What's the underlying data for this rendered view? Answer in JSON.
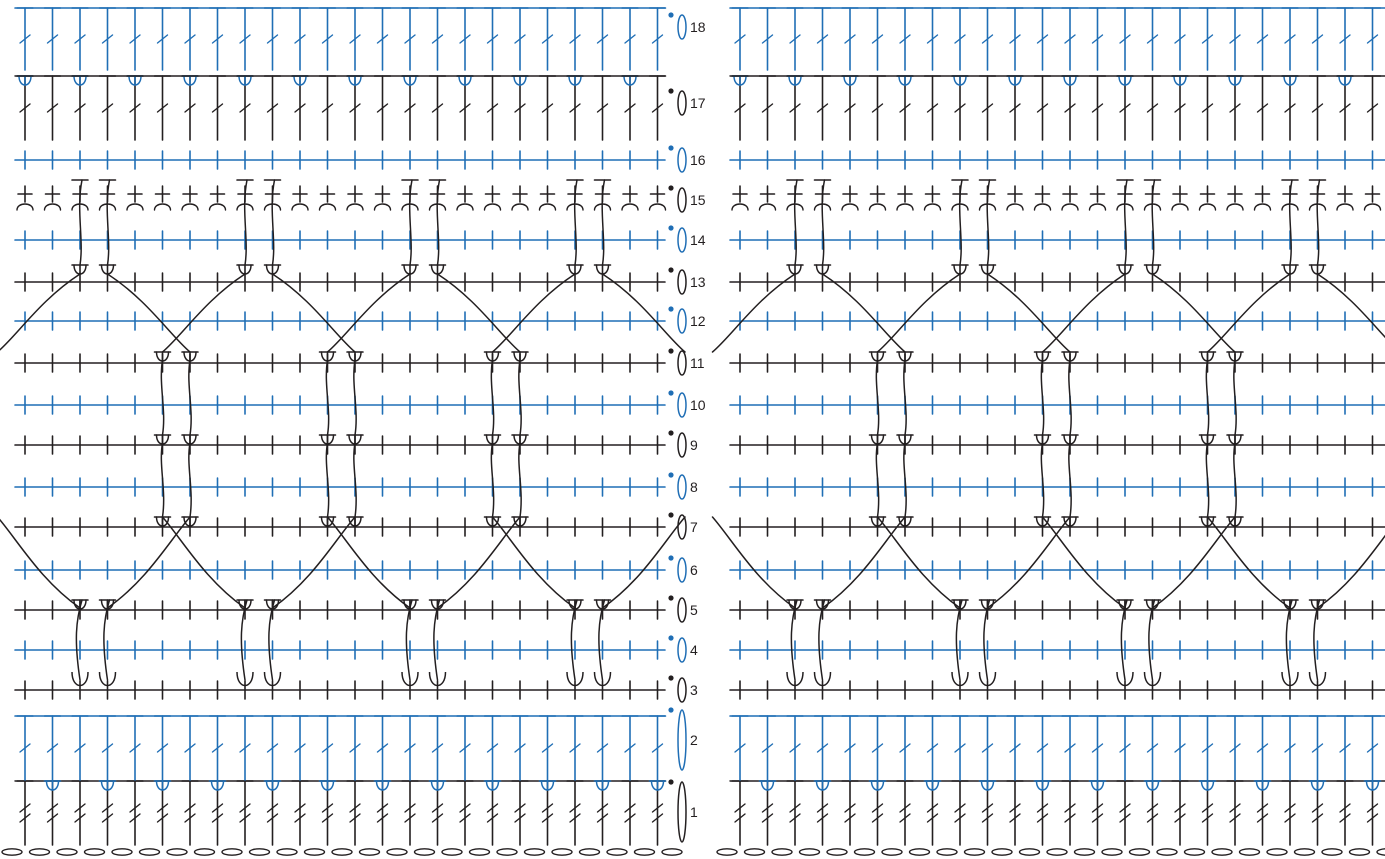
{
  "row_numbers": [
    "1",
    "2",
    "3",
    "4",
    "5",
    "6",
    "7",
    "8",
    "9",
    "10",
    "11",
    "12",
    "13",
    "14",
    "15",
    "16",
    "17",
    "18"
  ],
  "colors": {
    "odd_rows": "#231f20",
    "even_rows": "#1f6eb5",
    "dot_even": "#1f6eb5",
    "dot_odd": "#231f20"
  },
  "panels": [
    "chart-with-row-numbers",
    "chart-repeat"
  ],
  "symbols": [
    "chain-stitch",
    "single-crochet",
    "double-crochet",
    "treble-crochet-post",
    "long-loop-stitch",
    "front-post-stitch",
    "back-post-stitch"
  ]
}
